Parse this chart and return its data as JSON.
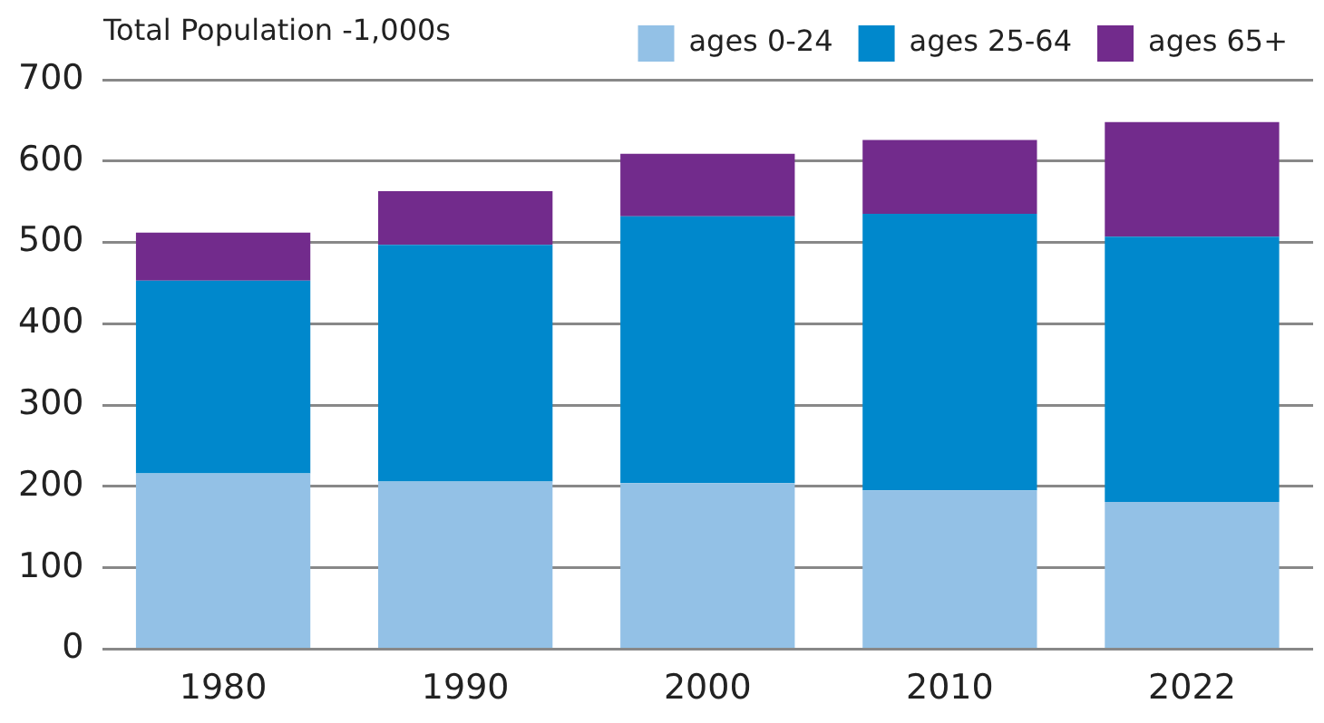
{
  "chart_data": {
    "type": "bar",
    "title": "Total Population -1,000s",
    "categories": [
      "1980",
      "1990",
      "2000",
      "2010",
      "2022"
    ],
    "series": [
      {
        "name": "ages 0-24",
        "color": "#93c1e6",
        "values": [
          216,
          206,
          204,
          195,
          181
        ]
      },
      {
        "name": "ages 25-64",
        "color": "#0088cc",
        "values": [
          237,
          291,
          328,
          340,
          326
        ]
      },
      {
        "name": "ages 65+",
        "color": "#722b8c",
        "values": [
          59,
          66,
          77,
          91,
          141
        ]
      }
    ],
    "stacked": true,
    "ylim": [
      0,
      700
    ],
    "yticks": [
      0,
      100,
      200,
      300,
      400,
      500,
      600,
      700
    ],
    "grid": "y",
    "legend": "top right"
  }
}
